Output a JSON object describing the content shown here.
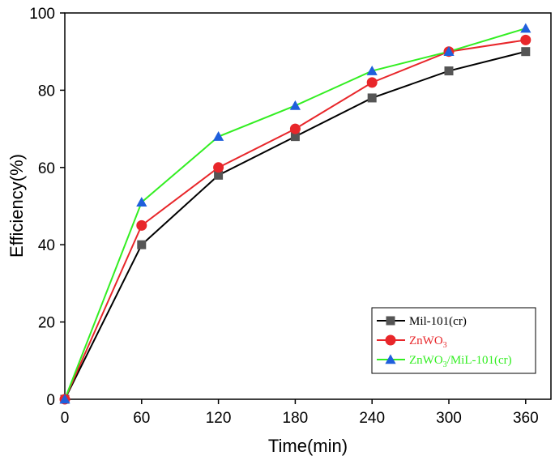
{
  "chart_data": {
    "type": "line",
    "xlabel": "Time(min)",
    "ylabel": "Efficiency(%)",
    "xlim": [
      0,
      390
    ],
    "ylim": [
      0,
      100
    ],
    "x_ticks": [
      0,
      60,
      120,
      180,
      240,
      300,
      360
    ],
    "y_ticks": [
      0,
      20,
      40,
      60,
      80,
      100
    ],
    "x": [
      0,
      60,
      120,
      180,
      240,
      300,
      360
    ],
    "legend_position": "bottom-right",
    "series": [
      {
        "name": "Mil-101(cr)",
        "label_main": "Mil-101(cr)",
        "label_sub": "",
        "label_tail": "",
        "marker": "square",
        "line_color": "#000000",
        "marker_color": "#555555",
        "values": [
          0,
          40,
          58,
          68,
          78,
          85,
          90
        ]
      },
      {
        "name": "ZnWO3",
        "label_main": "ZnWO",
        "label_sub": "3",
        "label_tail": "",
        "marker": "circle",
        "line_color": "#e8262a",
        "marker_color": "#e8262a",
        "values": [
          0,
          45,
          60,
          70,
          82,
          90,
          93
        ]
      },
      {
        "name": "ZnWO3/MiL-101(cr)",
        "label_main": "ZnWO",
        "label_sub": "3",
        "label_tail": "/MiL-101(cr)",
        "marker": "triangle",
        "line_color": "#33ee22",
        "marker_color": "#1f5fdc",
        "values": [
          0,
          51,
          68,
          76,
          85,
          90,
          96
        ]
      }
    ]
  }
}
